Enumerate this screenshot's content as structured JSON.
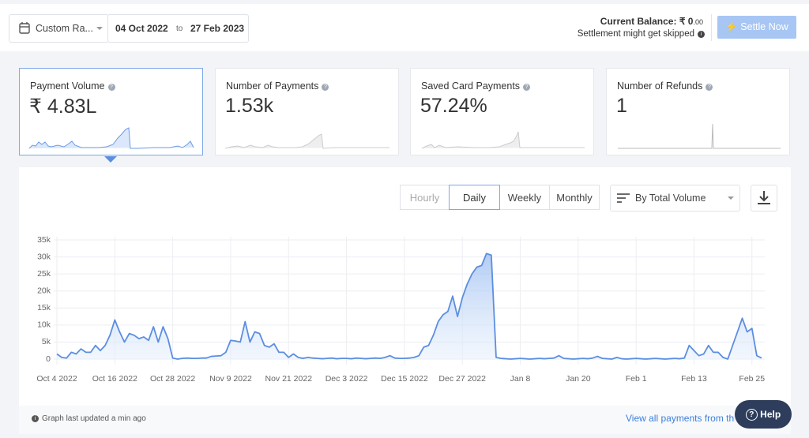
{
  "header": {
    "range_select": "Custom Ra...",
    "date_from": "04 Oct 2022",
    "to": "to",
    "date_to": "27 Feb 2023",
    "balance_label": "Current Balance:",
    "balance_value": "₹ 0",
    "balance_decimals": ".00",
    "settlement_note": "Settlement might get skipped",
    "settle_button": "Settle Now"
  },
  "cards": [
    {
      "title": "Payment Volume",
      "value": "₹ 4.83L"
    },
    {
      "title": "Number of Payments",
      "value": "1.53k"
    },
    {
      "title": "Saved Card Payments",
      "value": "57.24%"
    },
    {
      "title": "Number of Refunds",
      "value": "1"
    }
  ],
  "tabs": [
    "Hourly",
    "Daily",
    "Weekly",
    "Monthly"
  ],
  "sort_select": "By Total Volume",
  "chart_data": {
    "type": "area",
    "color": "#5b8ee0",
    "grid": true,
    "categories": [
      "Oct 4 2022",
      null,
      null,
      null,
      null,
      null,
      null,
      null,
      null,
      null,
      null,
      null,
      "Oct 16 2022",
      null,
      null,
      null,
      null,
      null,
      null,
      null,
      null,
      null,
      null,
      null,
      "Oct 28 2022",
      null,
      null,
      null,
      null,
      null,
      null,
      null,
      null,
      null,
      null,
      null,
      "Nov 9 2022",
      null,
      null,
      null,
      null,
      null,
      null,
      null,
      null,
      null,
      null,
      null,
      "Nov 21 2022",
      null,
      null,
      null,
      null,
      null,
      null,
      null,
      null,
      null,
      null,
      null,
      "Dec 3 2022",
      null,
      null,
      null,
      null,
      null,
      null,
      null,
      null,
      null,
      null,
      null,
      "Dec 15 2022",
      null,
      null,
      null,
      null,
      null,
      null,
      null,
      null,
      null,
      null,
      null,
      "Dec 27 2022",
      null,
      null,
      null,
      null,
      null,
      null,
      null,
      null,
      null,
      null,
      null,
      "Jan 8",
      null,
      null,
      null,
      null,
      null,
      null,
      null,
      null,
      null,
      null,
      null,
      "Jan 20",
      null,
      null,
      null,
      null,
      null,
      null,
      null,
      null,
      null,
      null,
      null,
      "Feb 1",
      null,
      null,
      null,
      null,
      null,
      null,
      null,
      null,
      null,
      null,
      null,
      "Feb 13",
      null,
      null,
      null,
      null,
      null,
      null,
      null,
      null,
      null,
      null,
      null,
      "Feb 25",
      null,
      null
    ],
    "values": [
      1500,
      500,
      300,
      2000,
      1500,
      3000,
      2000,
      2000,
      4000,
      2500,
      4000,
      7000,
      11500,
      8000,
      5000,
      7500,
      7000,
      6000,
      6500,
      5500,
      9500,
      5000,
      9500,
      6000,
      300,
      0,
      200,
      300,
      200,
      200,
      300,
      300,
      800,
      900,
      1000,
      2000,
      5500,
      5300,
      5000,
      11000,
      5000,
      8000,
      7500,
      4000,
      3500,
      4500,
      2000,
      2000,
      500,
      1500,
      500,
      200,
      500,
      300,
      200,
      100,
      200,
      300,
      100,
      200,
      200,
      100,
      300,
      200,
      100,
      200,
      300,
      200,
      500,
      1000,
      300,
      200,
      200,
      300,
      500,
      1000,
      3500,
      4000,
      7000,
      11000,
      13000,
      14000,
      18500,
      12500,
      18000,
      22000,
      25000,
      27000,
      27500,
      31000,
      30500,
      500,
      200,
      100,
      0,
      100,
      200,
      100,
      0,
      100,
      200,
      100,
      200,
      300,
      1000,
      200,
      100,
      0,
      100,
      200,
      100,
      300,
      800,
      200,
      100,
      0,
      500,
      100,
      0,
      100,
      200,
      100,
      0,
      100,
      200,
      100,
      0,
      100,
      200,
      100,
      300,
      4000,
      2500,
      1000,
      1500,
      4000,
      2000,
      2000,
      500,
      0,
      4000,
      8000,
      12000,
      8000,
      9000,
      1000,
      300
    ],
    "ylim": [
      0,
      35000
    ],
    "yticks": [
      0,
      {
        "value": 5000,
        "label": "5k"
      },
      {
        "value": 10000,
        "label": "10k"
      },
      {
        "value": 15000,
        "label": "15k"
      },
      {
        "value": 20000,
        "label": "20k"
      },
      {
        "value": 25000,
        "label": "25k"
      },
      {
        "value": 30000,
        "label": "30k"
      },
      {
        "value": 35000,
        "label": "35k"
      }
    ]
  },
  "footer": {
    "updated_note": "Graph last updated a min ago",
    "view_link": "View all payments from this"
  },
  "help_button": "Help"
}
